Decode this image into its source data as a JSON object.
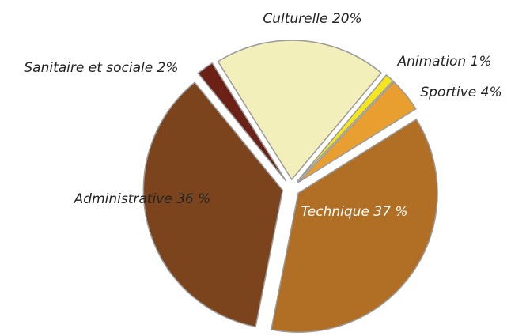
{
  "chart_data": {
    "type": "pie",
    "categories": [
      "Culturelle",
      "Animation",
      "Sportive",
      "Technique",
      "Administrative",
      "Sanitaire et sociale"
    ],
    "values": [
      20,
      1,
      4,
      37,
      36,
      2
    ],
    "value_labels": [
      "Culturelle 20%",
      "Animation 1%",
      "Sportive 4%",
      "Technique 37 %",
      "Administrative 36 %",
      "Sanitaire et sociale 2%"
    ],
    "colors": [
      "#f3efbb",
      "#f5e51c",
      "#e89f30",
      "#b06f25",
      "#7b441c",
      "#6b2116"
    ]
  }
}
